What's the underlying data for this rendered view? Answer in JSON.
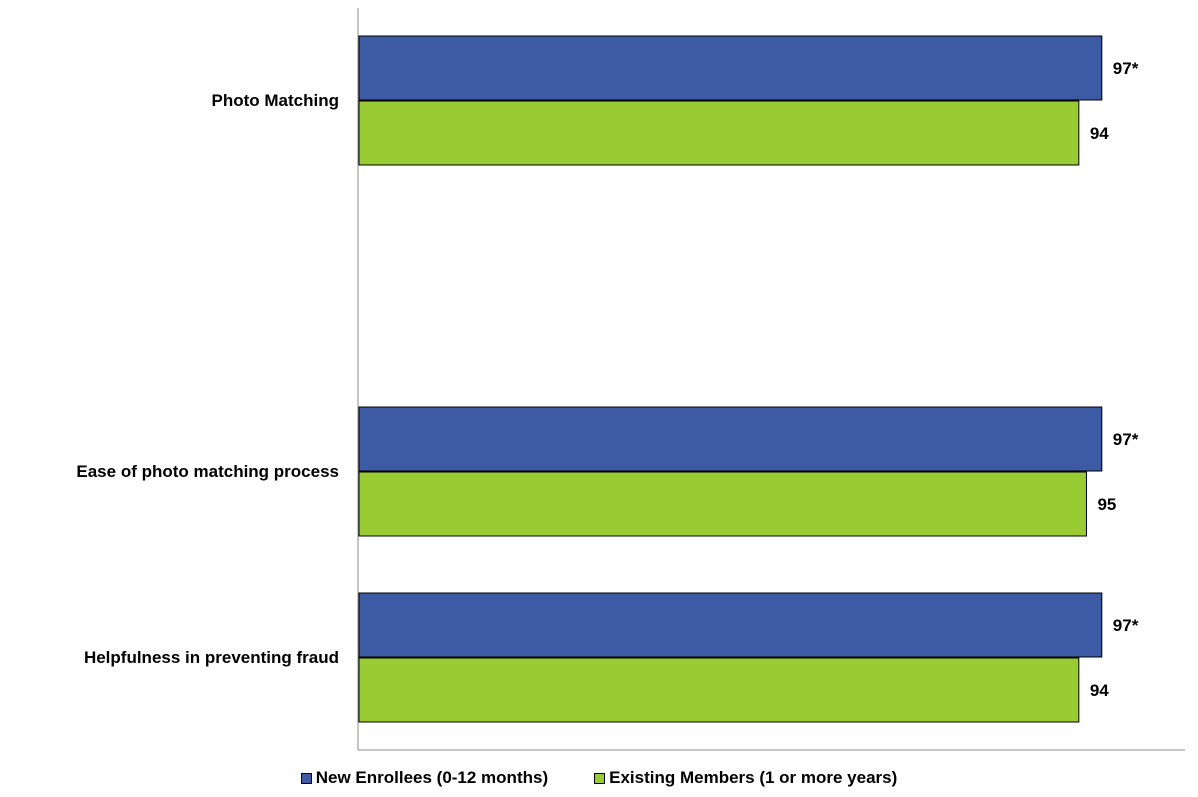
{
  "chart_data": {
    "type": "bar",
    "orientation": "horizontal",
    "categories": [
      "Photo Matching",
      "Ease of photo matching process",
      "Helpfulness in preventing fraud"
    ],
    "series": [
      {
        "name": "New Enrollees (0-12 months)",
        "values": [
          97,
          97,
          97
        ],
        "labels": [
          "97*",
          "97*",
          "97*"
        ],
        "color": "#3d5aa5"
      },
      {
        "name": "Existing Members (1 or more years)",
        "values": [
          94,
          95,
          94
        ],
        "labels": [
          "94",
          "95",
          "94"
        ],
        "color": "#99cc33"
      }
    ],
    "title": "",
    "xlabel": "",
    "ylabel": "",
    "xlim": [
      0,
      108
    ],
    "grid": false,
    "legend_position": "bottom"
  }
}
